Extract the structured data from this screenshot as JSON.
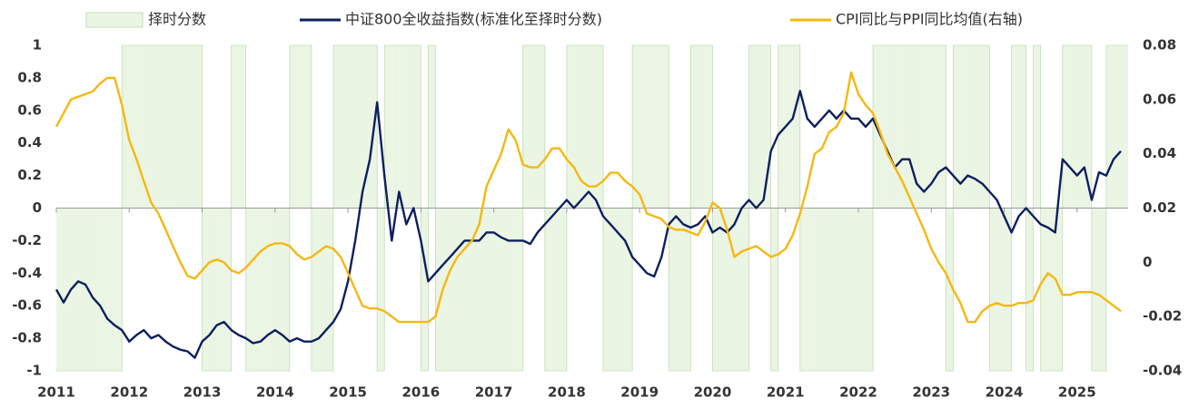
{
  "chart_data": {
    "type": "combo",
    "x": [
      2011.0,
      2011.1,
      2011.2,
      2011.3,
      2011.4,
      2011.5,
      2011.6,
      2011.7,
      2011.8,
      2011.9,
      2012.0,
      2012.1,
      2012.2,
      2012.3,
      2012.4,
      2012.5,
      2012.6,
      2012.7,
      2012.8,
      2012.9,
      2013.0,
      2013.1,
      2013.2,
      2013.3,
      2013.4,
      2013.5,
      2013.6,
      2013.7,
      2013.8,
      2013.9,
      2014.0,
      2014.1,
      2014.2,
      2014.3,
      2014.4,
      2014.5,
      2014.6,
      2014.7,
      2014.8,
      2014.9,
      2015.0,
      2015.1,
      2015.2,
      2015.3,
      2015.4,
      2015.5,
      2015.6,
      2015.7,
      2015.8,
      2015.9,
      2016.0,
      2016.1,
      2016.2,
      2016.3,
      2016.4,
      2016.5,
      2016.6,
      2016.7,
      2016.8,
      2016.9,
      2017.0,
      2017.1,
      2017.2,
      2017.3,
      2017.4,
      2017.5,
      2017.6,
      2017.7,
      2017.8,
      2017.9,
      2018.0,
      2018.1,
      2018.2,
      2018.3,
      2018.4,
      2018.5,
      2018.6,
      2018.7,
      2018.8,
      2018.9,
      2019.0,
      2019.1,
      2019.2,
      2019.3,
      2019.4,
      2019.5,
      2019.6,
      2019.7,
      2019.8,
      2019.9,
      2020.0,
      2020.1,
      2020.2,
      2020.3,
      2020.4,
      2020.5,
      2020.6,
      2020.7,
      2020.8,
      2020.9,
      2021.0,
      2021.1,
      2021.2,
      2021.3,
      2021.4,
      2021.5,
      2021.6,
      2021.7,
      2021.8,
      2021.9,
      2022.0,
      2022.1,
      2022.2,
      2022.3,
      2022.4,
      2022.5,
      2022.6,
      2022.7,
      2022.8,
      2022.9,
      2023.0,
      2023.1,
      2023.2,
      2023.3,
      2023.4,
      2023.5,
      2023.6,
      2023.7,
      2023.8,
      2023.9,
      2024.0,
      2024.1,
      2024.2,
      2024.3,
      2024.4,
      2024.5,
      2024.6,
      2024.7,
      2024.8,
      2024.9,
      2025.0,
      2025.1,
      2025.2,
      2025.3,
      2025.4,
      2025.5,
      2025.6
    ],
    "series": [
      {
        "name": "择时分数",
        "type": "area",
        "color": "#ebf5e4",
        "stroke": "#c3dcb6",
        "values": [
          -1,
          -1,
          -1,
          -1,
          -1,
          -1,
          -1,
          -1,
          -1,
          1,
          1,
          1,
          1,
          1,
          1,
          1,
          1,
          1,
          1,
          1,
          -1,
          -1,
          -1,
          -1,
          1,
          1,
          -1,
          -1,
          -1,
          -1,
          -1,
          -1,
          1,
          1,
          1,
          -1,
          -1,
          -1,
          1,
          1,
          1,
          1,
          1,
          1,
          -1,
          1,
          1,
          1,
          1,
          1,
          -1,
          1,
          -1,
          -1,
          -1,
          -1,
          -1,
          -1,
          -1,
          -1,
          -1,
          -1,
          -1,
          -1,
          1,
          1,
          1,
          -1,
          -1,
          -1,
          1,
          1,
          1,
          1,
          1,
          -1,
          -1,
          -1,
          -1,
          1,
          1,
          1,
          1,
          1,
          -1,
          -1,
          -1,
          1,
          1,
          1,
          -1,
          -1,
          -1,
          -1,
          -1,
          1,
          1,
          1,
          -1,
          1,
          1,
          1,
          -1,
          -1,
          -1,
          -1,
          -1,
          -1,
          -1,
          -1,
          -1,
          -1,
          1,
          1,
          1,
          1,
          1,
          1,
          1,
          1,
          1,
          1,
          -1,
          1,
          1,
          1,
          1,
          1,
          -1,
          -1,
          -1,
          1,
          1,
          -1,
          1,
          -1,
          -1,
          -1,
          1,
          1,
          1,
          1,
          -1,
          -1,
          1,
          1,
          1
        ]
      },
      {
        "name": "中证800全收益指数(标准化至择时分数)",
        "type": "line",
        "color": "#0d1f5e",
        "values": [
          -0.5,
          -0.58,
          -0.5,
          -0.45,
          -0.47,
          -0.55,
          -0.6,
          -0.68,
          -0.72,
          -0.75,
          -0.82,
          -0.78,
          -0.75,
          -0.8,
          -0.78,
          -0.82,
          -0.85,
          -0.87,
          -0.88,
          -0.92,
          -0.82,
          -0.78,
          -0.72,
          -0.7,
          -0.75,
          -0.78,
          -0.8,
          -0.83,
          -0.82,
          -0.78,
          -0.75,
          -0.78,
          -0.82,
          -0.8,
          -0.82,
          -0.82,
          -0.8,
          -0.75,
          -0.7,
          -0.62,
          -0.45,
          -0.2,
          0.1,
          0.3,
          0.65,
          0.2,
          -0.2,
          0.1,
          -0.1,
          0.0,
          -0.2,
          -0.45,
          -0.4,
          -0.35,
          -0.3,
          -0.25,
          -0.2,
          -0.2,
          -0.2,
          -0.15,
          -0.15,
          -0.18,
          -0.2,
          -0.2,
          -0.2,
          -0.22,
          -0.15,
          -0.1,
          -0.05,
          0.0,
          0.05,
          0.0,
          0.05,
          0.1,
          0.05,
          -0.05,
          -0.1,
          -0.15,
          -0.2,
          -0.3,
          -0.35,
          -0.4,
          -0.42,
          -0.3,
          -0.1,
          -0.05,
          -0.1,
          -0.12,
          -0.1,
          -0.05,
          -0.15,
          -0.12,
          -0.15,
          -0.1,
          0.0,
          0.05,
          0.0,
          0.05,
          0.35,
          0.45,
          0.5,
          0.55,
          0.72,
          0.55,
          0.5,
          0.55,
          0.6,
          0.55,
          0.6,
          0.55,
          0.55,
          0.5,
          0.55,
          0.45,
          0.35,
          0.25,
          0.3,
          0.3,
          0.15,
          0.1,
          0.15,
          0.22,
          0.25,
          0.2,
          0.15,
          0.2,
          0.18,
          0.15,
          0.1,
          0.05,
          -0.05,
          -0.15,
          -0.05,
          0.0,
          -0.05,
          -0.1,
          -0.12,
          -0.15,
          0.3,
          0.25,
          0.2,
          0.25,
          0.05,
          0.22,
          0.2,
          0.3,
          0.35
        ]
      },
      {
        "name": "CPI同比与PPI同比均值(右轴)",
        "type": "line",
        "axis": "y2",
        "color": "#f5b811",
        "values": [
          0.05,
          0.055,
          0.06,
          0.061,
          0.062,
          0.063,
          0.066,
          0.068,
          0.068,
          0.058,
          0.045,
          0.038,
          0.03,
          0.022,
          0.018,
          0.012,
          0.006,
          0.0,
          -0.005,
          -0.006,
          -0.003,
          0.0,
          0.001,
          0.0,
          -0.003,
          -0.004,
          -0.002,
          0.001,
          0.004,
          0.006,
          0.007,
          0.007,
          0.006,
          0.003,
          0.001,
          0.002,
          0.004,
          0.006,
          0.005,
          0.002,
          -0.004,
          -0.01,
          -0.016,
          -0.017,
          -0.017,
          -0.018,
          -0.02,
          -0.022,
          -0.022,
          -0.022,
          -0.022,
          -0.022,
          -0.02,
          -0.01,
          -0.003,
          0.002,
          0.005,
          0.008,
          0.014,
          0.028,
          0.034,
          0.04,
          0.049,
          0.045,
          0.036,
          0.035,
          0.035,
          0.038,
          0.042,
          0.042,
          0.038,
          0.035,
          0.03,
          0.028,
          0.028,
          0.03,
          0.033,
          0.033,
          0.03,
          0.028,
          0.025,
          0.018,
          0.017,
          0.016,
          0.013,
          0.012,
          0.012,
          0.011,
          0.01,
          0.015,
          0.022,
          0.02,
          0.012,
          0.002,
          0.004,
          0.005,
          0.006,
          0.004,
          0.002,
          0.003,
          0.005,
          0.01,
          0.018,
          0.028,
          0.04,
          0.042,
          0.048,
          0.05,
          0.055,
          0.07,
          0.062,
          0.058,
          0.055,
          0.048,
          0.04,
          0.035,
          0.03,
          0.024,
          0.018,
          0.012,
          0.005,
          0.0,
          -0.004,
          -0.01,
          -0.015,
          -0.022,
          -0.022,
          -0.018,
          -0.016,
          -0.015,
          -0.016,
          -0.016,
          -0.015,
          -0.015,
          -0.014,
          -0.008,
          -0.004,
          -0.006,
          -0.012,
          -0.012,
          -0.011,
          -0.011,
          -0.011,
          -0.012,
          -0.014,
          -0.016,
          -0.018
        ]
      }
    ],
    "xlim": [
      2011,
      2025.7
    ],
    "xticks": [
      2011,
      2012,
      2013,
      2014,
      2015,
      2016,
      2017,
      2018,
      2019,
      2020,
      2021,
      2022,
      2023,
      2024,
      2025
    ],
    "ylim": [
      -1,
      1
    ],
    "yticks": [
      -1,
      -0.8,
      -0.6,
      -0.4,
      -0.2,
      0,
      0.2,
      0.4,
      0.6,
      0.8,
      1
    ],
    "y2lim": [
      -0.04,
      0.08
    ],
    "y2ticks": [
      -0.04,
      -0.02,
      0,
      0.02,
      0.04,
      0.06,
      0.08
    ],
    "legend": "top"
  }
}
